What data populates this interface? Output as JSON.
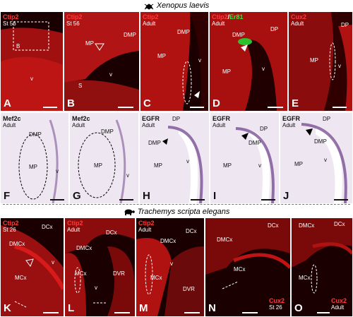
{
  "header_xenopus": "Xenopus laevis",
  "header_trachemys": "Trachemys scripta elegans",
  "panels": {
    "A": {
      "letter": "A",
      "marker": "Ctip2",
      "stage": "St 56",
      "inset": "B",
      "ann": [
        "v"
      ]
    },
    "B": {
      "letter": "B",
      "marker": "Ctip2",
      "stage": "St 56",
      "ann": [
        "DMP",
        "MP",
        "v",
        "S"
      ]
    },
    "C": {
      "letter": "C",
      "marker": "Ctip2",
      "stage": "Adult",
      "ann": [
        "DMP",
        "MP",
        "v"
      ]
    },
    "D": {
      "letter": "D",
      "marker": "Ctip2",
      "slash": "/",
      "marker2": "Er81",
      "stage": "Adult",
      "ann": [
        "DMP",
        "DP",
        "MP",
        "v"
      ]
    },
    "E": {
      "letter": "E",
      "marker": "Cux2",
      "stage": "Adult",
      "ann": [
        "DP",
        "MP",
        "v"
      ]
    },
    "F": {
      "letter": "F",
      "marker": "Mef2c",
      "stage": "Adult",
      "ann": [
        "DMP",
        "MP",
        "v"
      ]
    },
    "G": {
      "letter": "G",
      "marker": "Mef2c",
      "stage": "Adult",
      "ann": [
        "DMP",
        "MP",
        "v"
      ]
    },
    "H": {
      "letter": "H",
      "marker": "EGFR",
      "stage": "Adult",
      "ann": [
        "DP",
        "DMP",
        "MP",
        "v"
      ]
    },
    "I": {
      "letter": "I",
      "marker": "EGFR",
      "stage": "Adult",
      "ann": [
        "DP",
        "DMP",
        "MP",
        "v"
      ]
    },
    "J": {
      "letter": "J",
      "marker": "EGFR",
      "stage": "Adult",
      "ann": [
        "DP",
        "DMP",
        "MP",
        "v"
      ]
    },
    "K": {
      "letter": "K",
      "marker": "Ctip2",
      "stage": "St 26",
      "ann": [
        "DCx",
        "DMCx",
        "MCx",
        "v"
      ]
    },
    "L": {
      "letter": "L",
      "marker": "Ctip2",
      "stage": "Adult",
      "ann": [
        "DCx",
        "DMCx",
        "MCx",
        "DVR",
        "v"
      ]
    },
    "M": {
      "letter": "M",
      "marker": "Ctip2",
      "stage": "Adult",
      "ann": [
        "DMCx",
        "DCx",
        "MCx",
        "DVR",
        "v"
      ]
    },
    "N": {
      "letter": "N",
      "marker": "Cux2",
      "stage": "St 26",
      "ann": [
        "DCx",
        "DMCx",
        "MCx"
      ]
    },
    "O": {
      "letter": "O",
      "marker": "Cux2",
      "stage": "Adult",
      "ann": [
        "DMCx",
        "DCx",
        "MCx"
      ]
    }
  },
  "colors": {
    "fluor_bg": "#1a0000",
    "tissue_red": "#c81010",
    "ish_bg": "#eee6f0",
    "ish_stain": "#6a3a88"
  }
}
